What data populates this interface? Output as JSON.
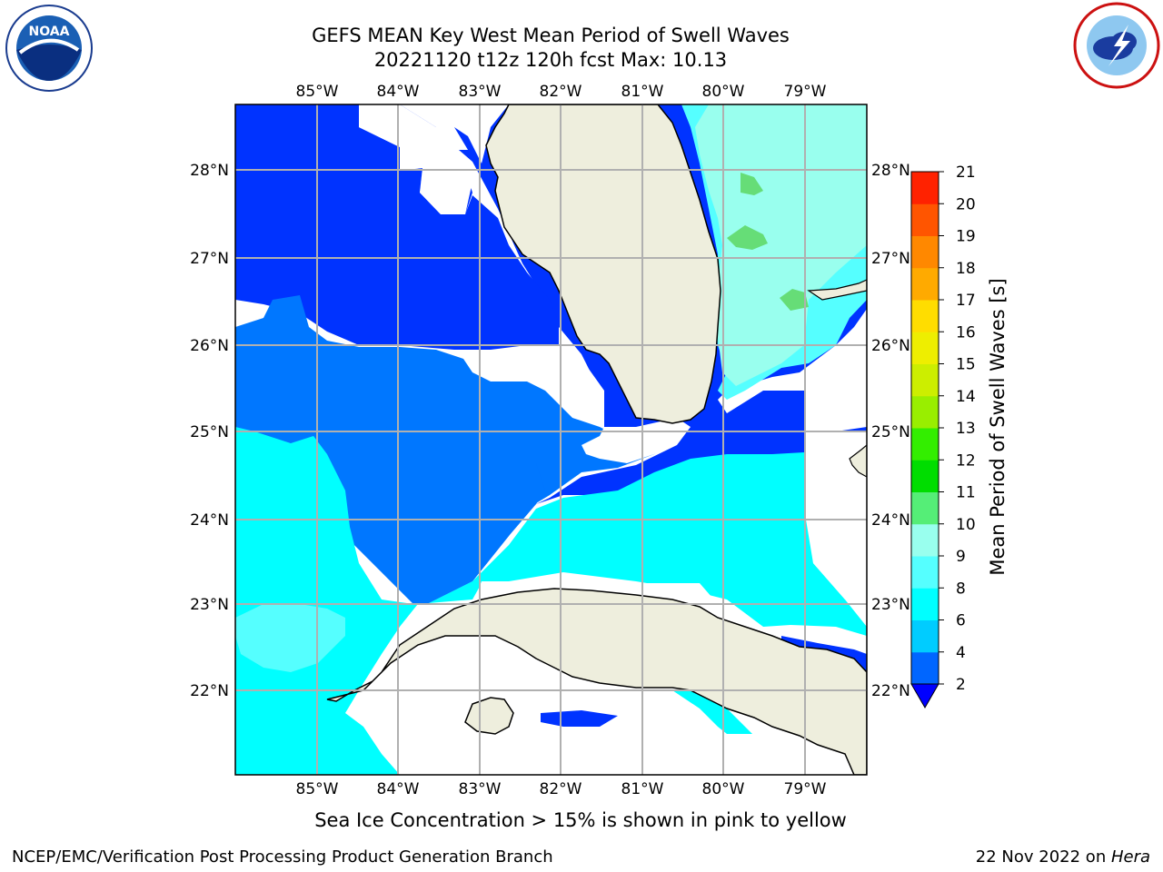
{
  "title_line1": "GEFS MEAN Key West Mean Period of Swell Waves",
  "title_line2": "20221120 t12z 120h fcst   Max: 10.13",
  "caption": "Sea Ice Concentration > 15% is shown in pink to yellow",
  "footer_left": "NCEP/EMC/Verification Post Processing Product Generation Branch",
  "footer_date": "22 Nov 2022 on ",
  "footer_host": "Hera",
  "logos": {
    "left": "noara-logo",
    "right": "nws-logo"
  },
  "map": {
    "lon_labels": [
      "85°W",
      "84°W",
      "83°W",
      "82°W",
      "81°W",
      "80°W",
      "79°W"
    ],
    "lat_labels": [
      "28°N",
      "27°N",
      "26°N",
      "25°N",
      "24°N",
      "23°N",
      "22°N"
    ]
  },
  "colorbar": {
    "label": "Mean Period of Swell Waves [s]",
    "ticks": [
      "2",
      "4",
      "6",
      "8",
      "9",
      "10",
      "11",
      "12",
      "13",
      "14",
      "15",
      "16",
      "17",
      "18",
      "19",
      "20",
      "21"
    ],
    "colors": [
      "#0000ff",
      "#0066ff",
      "#00ccff",
      "#00ffff",
      "#55ffff",
      "#99ffee",
      "#55ee77",
      "#00dd00",
      "#33ee00",
      "#99ee00",
      "#ccee00",
      "#eeee00",
      "#ffdd00",
      "#ffaa00",
      "#ff8800",
      "#ff5500",
      "#ff2200"
    ]
  },
  "colors": {
    "land": "#eeeedd",
    "grid": "#b0b0b0",
    "period_2_4": "#0033ff",
    "period_4_6": "#0077ff",
    "period_6_8": "#00ffff",
    "period_8_9": "#55ffff",
    "period_9_10": "#99ffee",
    "period_10_11": "#66dd77"
  }
}
